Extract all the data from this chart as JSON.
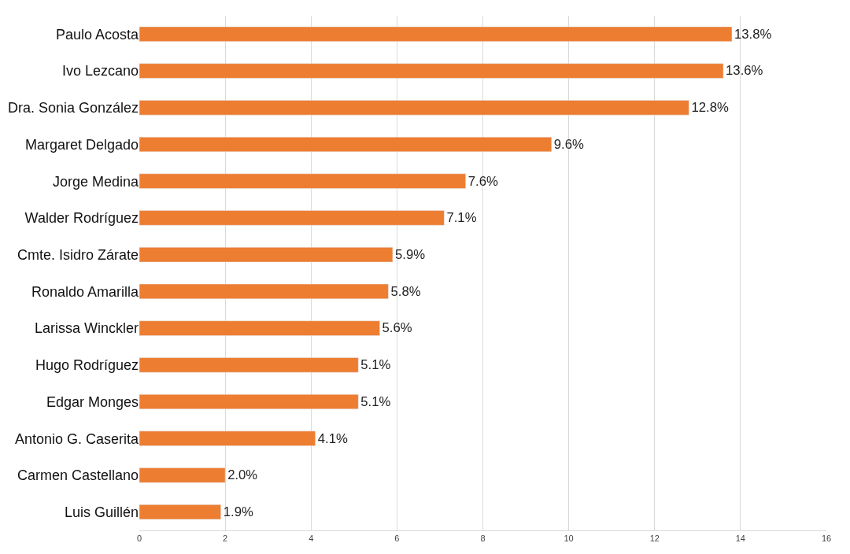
{
  "chart_data": {
    "type": "bar",
    "orientation": "horizontal",
    "categories": [
      "Paulo Acosta",
      "Ivo Lezcano",
      "Dra. Sonia González",
      "Margaret Delgado",
      "Jorge Medina",
      "Walder Rodríguez",
      "Cmte. Isidro Zárate",
      "Ronaldo Amarilla",
      "Larissa Winckler",
      "Hugo Rodríguez",
      "Edgar Monges",
      "Antonio G. Caserita",
      "Carmen Castellano",
      "Luis Guillén"
    ],
    "values": [
      13.8,
      13.6,
      12.8,
      9.6,
      7.6,
      7.1,
      5.9,
      5.8,
      5.6,
      5.1,
      5.1,
      4.1,
      2.0,
      1.9
    ],
    "value_labels": [
      "13.8%",
      "13.6%",
      "12.8%",
      "9.6%",
      "7.6%",
      "7.1%",
      "5.9%",
      "5.8%",
      "5.6%",
      "5.1%",
      "5.1%",
      "4.1%",
      "2.0%",
      "1.9%"
    ],
    "color": "#ed7d31",
    "xlim": [
      0,
      16
    ],
    "xticks": [
      0,
      2,
      4,
      6,
      8,
      10,
      12,
      14,
      16
    ],
    "grid": "x",
    "legend": false
  }
}
